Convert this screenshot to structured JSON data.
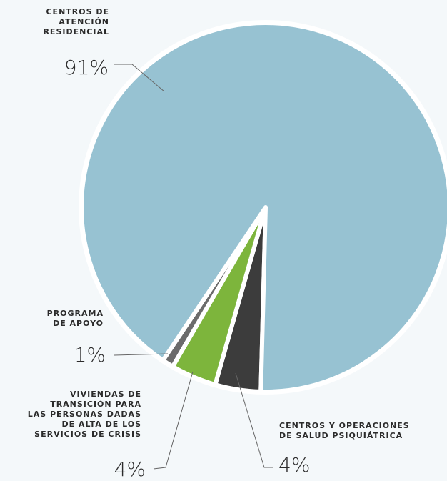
{
  "chart_data": {
    "type": "pie",
    "categories": [
      "CENTROS Y OPERACIONES\nDE SALUD PSIQUIÁTRICA",
      "VIVIENDAS DE\nTRANSICIÓN PARA\nLAS PERSONAS DADAS\nDE ALTA DE LOS\nSERVICIOS DE CRISIS",
      "PROGRAMA\nDE APOYO",
      "CENTROS DE\nATENCIÓN\nRESIDENCIAL"
    ],
    "values": [
      4,
      4,
      1,
      91
    ],
    "value_labels": [
      "4%",
      "4%",
      "1%",
      "91%"
    ],
    "colors": [
      "#3c3c3c",
      "#7db53c",
      "#6b6b6b",
      "#97c2d2"
    ]
  }
}
